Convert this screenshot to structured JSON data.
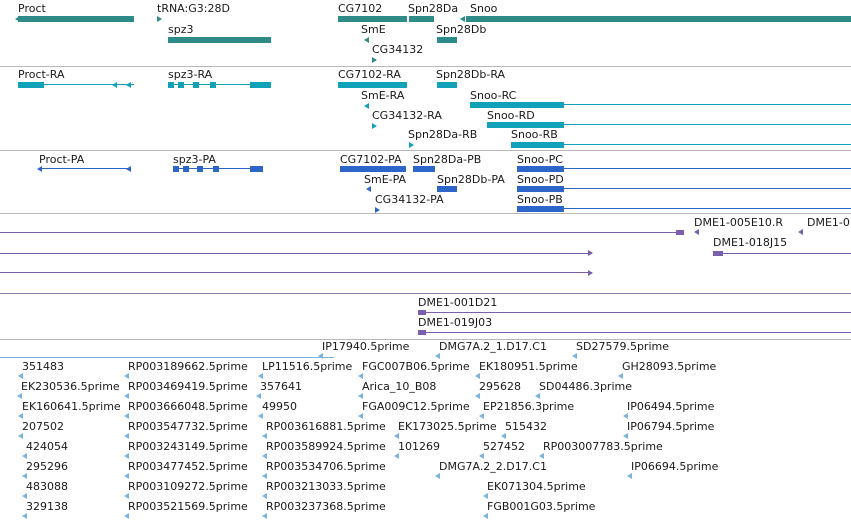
{
  "colors": {
    "gene": "#2e8b87",
    "transcript_rna": "#11a2ba",
    "transcript_pa": "#2e65c8",
    "clone": "#7a5fae",
    "est": "#7ab3db",
    "separator": "#b9b9b9",
    "label": "#1a1a1a"
  },
  "tracks": {
    "genes": [
      {
        "label": "Proct",
        "strand": "-"
      },
      {
        "label": "tRNA:G3:28D",
        "strand": "+"
      },
      {
        "label": "spz3",
        "strand": "+"
      },
      {
        "label": "CG7102",
        "strand": "+"
      },
      {
        "label": "Spn28Da",
        "strand": "+"
      },
      {
        "label": "Snoo",
        "strand": "-"
      },
      {
        "label": "SmE",
        "strand": "-"
      },
      {
        "label": "Spn28Db",
        "strand": "+"
      },
      {
        "label": "CG34132",
        "strand": "+"
      }
    ],
    "rna_transcripts": [
      "Proct-RA",
      "spz3-RA",
      "CG7102-RA",
      "Spn28Db-RA",
      "SmE-RA",
      "Snoo-RC",
      "CG34132-RA",
      "Snoo-RD",
      "Spn28Da-RB",
      "Snoo-RB"
    ],
    "pa_proteins": [
      "Proct-PA",
      "spz3-PA",
      "CG7102-PA",
      "Spn28Da-PB",
      "Snoo-PC",
      "SmE-PA",
      "Spn28Db-PA",
      "Snoo-PD",
      "Snoo-PB",
      "CG34132-PA"
    ],
    "clones": [
      "DME1-005E10.R",
      "DME1-0",
      "DME1-018J15",
      "DME1-001D21",
      "DME1-019J03"
    ],
    "ests": [
      "IP17940.5prime",
      "DMG7A.2_1.D17.C1",
      "SD27579.5prime",
      "351483",
      "RP003189662.5prime",
      "LP11516.5prime",
      "FGC007B06.5prime",
      "EK180951.5prime",
      "GH28093.5prime",
      "EK230536.5prime",
      "RP003469419.5prime",
      "357641",
      "Arica_10_B08",
      "295628",
      "SD04486.3prime",
      "EK160641.5prime",
      "RP003666048.5prime",
      "49950",
      "FGA009C12.5prime",
      "EP21856.3prime",
      "IP06494.5prime",
      "207502",
      "RP003547732.5prime",
      "RP003616881.5prime",
      "EK173025.5prime",
      "515432",
      "IP06794.5prime",
      "424054",
      "RP003243149.5prime",
      "RP003589924.5prime",
      "101269",
      "527452",
      "RP003007783.5prime",
      "295296",
      "RP003477452.5prime",
      "RP003534706.5prime",
      "DMG7A.2_2.D17.C1",
      "IP06694.5prime",
      "483088",
      "RP003109272.5prime",
      "RP003213033.5prime",
      "EK071304.5prime",
      "329138",
      "RP003521569.5prime",
      "RP003237368.5prime",
      "FGB001G03.5prime"
    ]
  }
}
